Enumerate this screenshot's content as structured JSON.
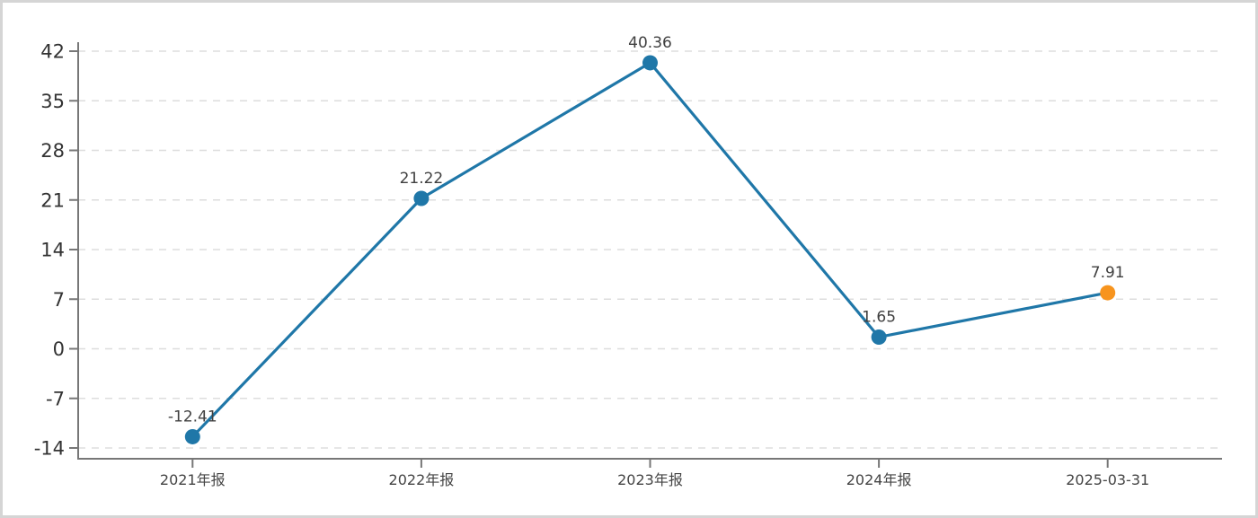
{
  "chart_data": {
    "type": "line",
    "title": "",
    "xlabel": "",
    "ylabel": "",
    "categories": [
      "2021年报",
      "2022年报",
      "2023年报",
      "2024年报",
      "2025-03-31"
    ],
    "values": [
      -12.41,
      21.22,
      40.36,
      1.65,
      7.91
    ],
    "point_labels": [
      "-12.41",
      "21.22",
      "40.36",
      "1.65",
      "7.91"
    ],
    "yticks": [
      42,
      35,
      28,
      21,
      14,
      7,
      0,
      -7,
      -14
    ],
    "ylim": [
      -14,
      42
    ],
    "grid": "horizontal-dashed",
    "legend": "none",
    "colors": {
      "line": "#1f77a8",
      "point": "#1f77a8",
      "last_point": "#f7941e",
      "grid_line": "#dddddd",
      "axis_line": "#777777",
      "y_tick_label": "#333333",
      "x_tick_label": "#444444",
      "data_label": "#404040",
      "background": "#ffffff",
      "frame_border": "#d5d5d5"
    }
  }
}
